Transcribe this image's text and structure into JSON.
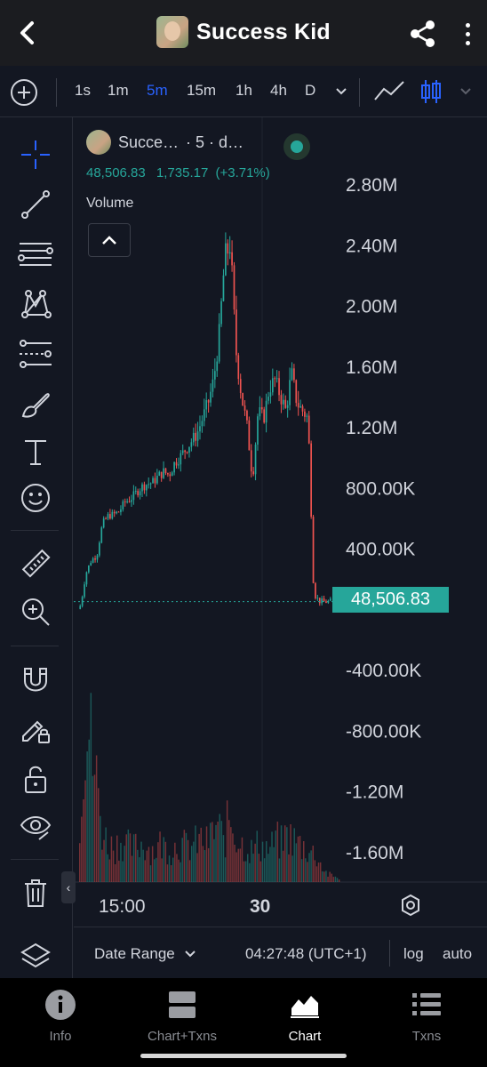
{
  "header": {
    "title": "Success Kid"
  },
  "toolbar": {
    "intervals": [
      {
        "label": "1s",
        "active": false
      },
      {
        "label": "1m",
        "active": false
      },
      {
        "label": "5m",
        "active": true
      },
      {
        "label": "15m",
        "active": false
      },
      {
        "label": "1h",
        "active": false
      },
      {
        "label": "4h",
        "active": false
      },
      {
        "label": "D",
        "active": false
      }
    ],
    "chart_style": "candles"
  },
  "legend": {
    "symbol": "Succe…",
    "interval": "· 5 · d…",
    "last_value": "48,506.83",
    "change": "1,735.17",
    "change_pct": "(+3.71%)",
    "status_color": "#26a69a",
    "volume_label": "Volume"
  },
  "price_axis": {
    "labels": [
      "2.80M",
      "2.40M",
      "2.00M",
      "1.60M",
      "1.20M",
      "800.00K",
      "400.00K",
      "-400.00K",
      "-800.00K",
      "-1.20M",
      "-1.60M"
    ],
    "current_price": "48,506.83"
  },
  "time_axis": {
    "labels": [
      "15:00",
      "30"
    ]
  },
  "range_bar": {
    "date_range": "Date Range",
    "clock": "04:27:48 (UTC+1)",
    "log": "log",
    "auto": "auto"
  },
  "bottom_nav": {
    "items": [
      {
        "label": "Info",
        "icon": "info-icon",
        "active": false
      },
      {
        "label": "Chart+Txns",
        "icon": "split-view-icon",
        "active": false
      },
      {
        "label": "Chart",
        "icon": "chart-area-icon",
        "active": true
      },
      {
        "label": "Txns",
        "icon": "list-icon",
        "active": false
      }
    ]
  },
  "colors": {
    "up": "#26a69a",
    "down": "#ef5350",
    "accent": "#2962ff",
    "background": "#131722"
  },
  "chart_data": {
    "type": "candlestick",
    "x_labels": [
      "15:00",
      "30"
    ],
    "ylim": [
      -1800000,
      2900000
    ],
    "y_ticks": [
      2800000,
      2400000,
      2000000,
      1600000,
      1200000,
      800000,
      400000,
      -400000,
      -800000,
      -1200000,
      -1600000
    ],
    "last_price": 48506.83,
    "close_series": [
      0,
      230000,
      320000,
      350000,
      560000,
      610000,
      620000,
      640000,
      700000,
      720000,
      760000,
      800000,
      820000,
      830000,
      870000,
      900000,
      880000,
      960000,
      1000000,
      1050000,
      1100000,
      1150000,
      1250000,
      1350000,
      1500000,
      1800000,
      2300000,
      2400000,
      1700000,
      1400000,
      1200000,
      850000,
      1300000,
      1250000,
      1450000,
      1500000,
      1400000,
      1300000,
      1550000,
      1350000,
      1300000,
      1250000,
      100000,
      50000,
      45000,
      48506.83
    ],
    "volume_series": [
      0.35,
      0.9,
      0.7,
      0.5,
      0.25,
      0.2,
      0.18,
      0.22,
      0.2,
      0.17,
      0.19,
      0.2,
      0.18,
      0.16,
      0.2,
      0.18,
      0.17,
      0.2,
      0.19,
      0.18,
      0.2,
      0.22,
      0.2,
      0.25,
      0.3,
      0.2,
      0.35,
      0.25,
      0.2,
      0.18,
      0.16,
      0.2,
      0.18,
      0.17,
      0.22,
      0.2,
      0.25,
      0.22,
      0.2,
      0.18,
      0.16,
      0.14,
      0.08,
      0.04,
      0.03,
      0.02
    ]
  }
}
